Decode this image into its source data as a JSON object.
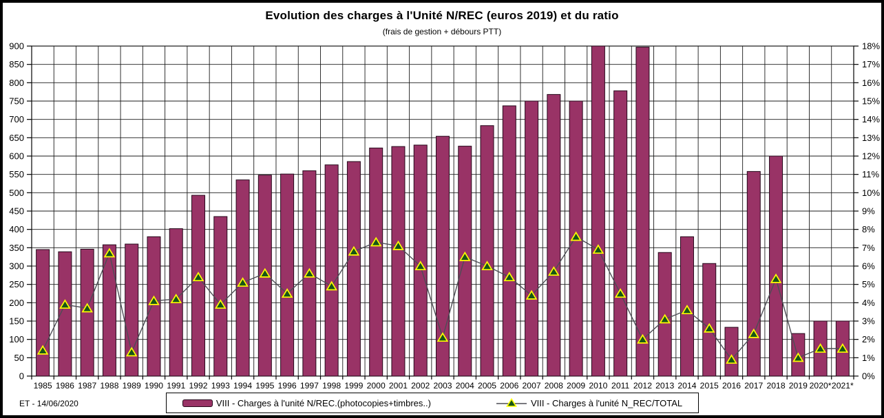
{
  "header": {
    "title": "Evolution des charges à l'Unité N/REC (euros 2019) et du ratio",
    "subtitle": "(frais de gestion + débours PTT)"
  },
  "footer": {
    "signature": "ET -  14/06/2020"
  },
  "legend": {
    "bars_label": "VIII - Charges  à l'unité N/REC.(photocopies+timbres..)",
    "line_label": "VIII - Charges  à l'unité N_REC/TOTAL"
  },
  "colors": {
    "bar_fill": "#993366",
    "bar_border": "#24081a",
    "line": "#4d4d55",
    "marker_fill": "#175517",
    "marker_border": "#ffff00",
    "grid": "#1a1a1a",
    "axis": "#000000",
    "plot_bg": "#ffffff",
    "frame": "#000000"
  },
  "chart_data": {
    "type": "bar+line",
    "title": "Evolution des charges à l'Unité N/REC (euros 2019) et du ratio",
    "subtitle": "(frais de gestion + débours PTT)",
    "grid": "both",
    "legend_position": "bottom",
    "categories": [
      "1985",
      "1986",
      "1987",
      "1988",
      "1989",
      "1990",
      "1991",
      "1992",
      "1993",
      "1994",
      "1995",
      "1996",
      "1997",
      "1998",
      "1999",
      "2000",
      "2001",
      "2002",
      "2003",
      "2004",
      "2005",
      "2006",
      "2007",
      "2008",
      "2009",
      "2010",
      "2011",
      "2012",
      "2013",
      "2014",
      "2015",
      "2016",
      "2017",
      "2018",
      "2019",
      "2020*",
      "2021*"
    ],
    "left_axis": {
      "min": 0,
      "max": 900,
      "step": 50,
      "suffix": ""
    },
    "right_axis": {
      "min": 0,
      "max": 18,
      "step": 1,
      "suffix": "%"
    },
    "series": [
      {
        "name": "VIII - Charges  à l'unité N/REC.(photocopies+timbres..)",
        "type": "bar",
        "axis": "left",
        "values": [
          345,
          339,
          346,
          358,
          360,
          380,
          402,
          493,
          435,
          535,
          548,
          551,
          560,
          576,
          585,
          622,
          626,
          630,
          654,
          627,
          683,
          737,
          750,
          768,
          750,
          900,
          778,
          897,
          337,
          380,
          307,
          133,
          558,
          600,
          116,
          150,
          150
        ]
      },
      {
        "name": "VIII - Charges  à l'unité N_REC/TOTAL",
        "type": "line",
        "axis": "right",
        "values": [
          1.4,
          3.9,
          3.7,
          6.7,
          1.3,
          4.1,
          4.2,
          5.4,
          3.9,
          5.1,
          5.6,
          4.5,
          5.6,
          4.9,
          6.8,
          7.3,
          7.1,
          6.0,
          2.1,
          6.5,
          6.0,
          5.4,
          4.4,
          5.7,
          7.6,
          6.9,
          4.5,
          2.0,
          3.1,
          3.6,
          2.6,
          0.9,
          2.3,
          5.3,
          1.0,
          1.5,
          1.5
        ]
      }
    ]
  }
}
